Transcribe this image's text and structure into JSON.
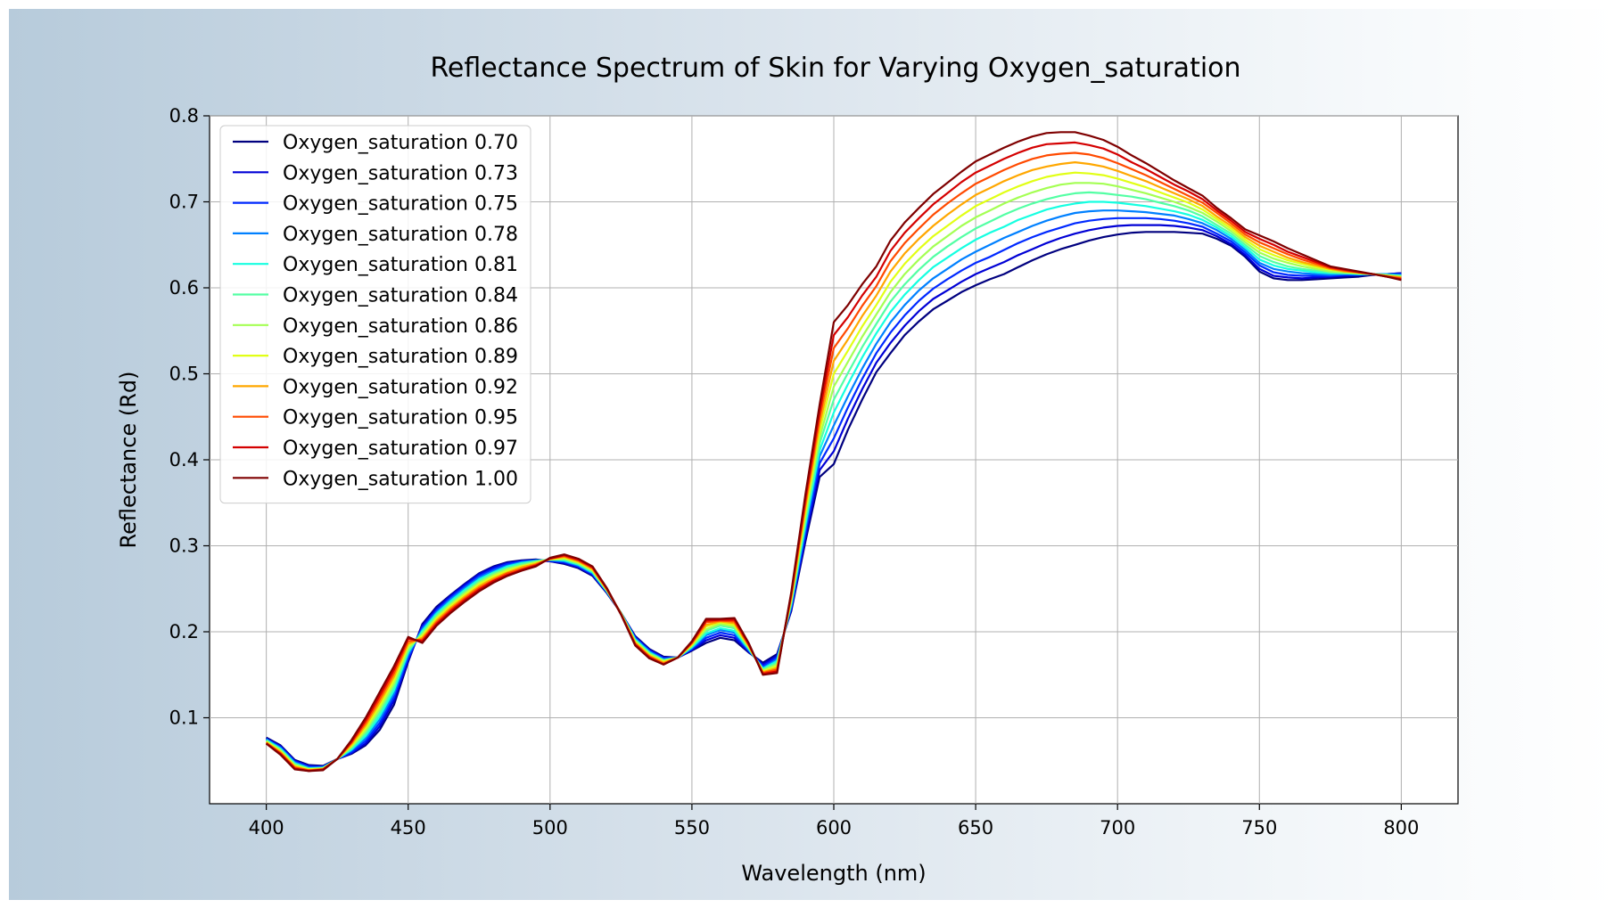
{
  "chart_data": {
    "type": "line",
    "title": "Reflectance Spectrum of Skin for Varying Oxygen_saturation",
    "xlabel": "Wavelength (nm)",
    "ylabel": "Reflectance (Rd)",
    "xlim": [
      380,
      820
    ],
    "ylim": [
      0,
      0.8
    ],
    "xticks": [
      "400",
      "450",
      "500",
      "550",
      "600",
      "650",
      "700",
      "750",
      "800"
    ],
    "yticks": [
      "0.1",
      "0.2",
      "0.3",
      "0.4",
      "0.5",
      "0.6",
      "0.7",
      "0.8"
    ],
    "grid": true,
    "legend_position": "top-left",
    "x": [
      400,
      405,
      410,
      415,
      420,
      425,
      430,
      435,
      440,
      445,
      450,
      455,
      460,
      465,
      470,
      475,
      480,
      485,
      490,
      495,
      500,
      505,
      510,
      515,
      520,
      525,
      530,
      535,
      540,
      545,
      550,
      555,
      560,
      565,
      570,
      575,
      580,
      585,
      590,
      595,
      600,
      605,
      610,
      615,
      620,
      625,
      630,
      635,
      640,
      645,
      650,
      655,
      660,
      665,
      670,
      675,
      680,
      685,
      690,
      695,
      700,
      705,
      710,
      715,
      720,
      725,
      730,
      735,
      740,
      745,
      750,
      755,
      760,
      765,
      770,
      775,
      780,
      785,
      790,
      795,
      800
    ],
    "series": [
      {
        "name": "Oxygen_saturation 0.70",
        "color": "#00007f",
        "values": [
          0.077,
          0.068,
          0.051,
          0.045,
          0.044,
          0.052,
          0.058,
          0.068,
          0.086,
          0.115,
          0.165,
          0.209,
          0.229,
          0.243,
          0.256,
          0.268,
          0.276,
          0.281,
          0.283,
          0.284,
          0.282,
          0.279,
          0.274,
          0.265,
          0.245,
          0.222,
          0.195,
          0.18,
          0.171,
          0.17,
          0.178,
          0.187,
          0.193,
          0.19,
          0.176,
          0.164,
          0.174,
          0.224,
          0.305,
          0.38,
          0.395,
          0.435,
          0.47,
          0.502,
          0.524,
          0.545,
          0.561,
          0.575,
          0.585,
          0.595,
          0.603,
          0.61,
          0.616,
          0.624,
          0.632,
          0.639,
          0.645,
          0.65,
          0.655,
          0.659,
          0.662,
          0.664,
          0.665,
          0.665,
          0.665,
          0.664,
          0.663,
          0.657,
          0.649,
          0.636,
          0.619,
          0.611,
          0.609,
          0.609,
          0.61,
          0.611,
          0.612,
          0.613,
          0.615,
          0.616,
          0.617
        ]
      },
      {
        "name": "Oxygen_saturation 0.73",
        "color": "#0000d5",
        "values": [
          0.076,
          0.067,
          0.05,
          0.044,
          0.043,
          0.052,
          0.059,
          0.07,
          0.09,
          0.12,
          0.167,
          0.207,
          0.227,
          0.242,
          0.255,
          0.267,
          0.275,
          0.28,
          0.282,
          0.283,
          0.282,
          0.28,
          0.275,
          0.266,
          0.246,
          0.222,
          0.194,
          0.179,
          0.17,
          0.17,
          0.179,
          0.19,
          0.196,
          0.193,
          0.177,
          0.162,
          0.172,
          0.226,
          0.31,
          0.388,
          0.41,
          0.448,
          0.482,
          0.513,
          0.536,
          0.556,
          0.573,
          0.587,
          0.597,
          0.607,
          0.616,
          0.623,
          0.63,
          0.638,
          0.645,
          0.652,
          0.658,
          0.663,
          0.667,
          0.67,
          0.672,
          0.673,
          0.673,
          0.673,
          0.672,
          0.67,
          0.667,
          0.66,
          0.651,
          0.638,
          0.622,
          0.614,
          0.612,
          0.611,
          0.612,
          0.613,
          0.614,
          0.615,
          0.616,
          0.616,
          0.617
        ]
      },
      {
        "name": "Oxygen_saturation 0.75",
        "color": "#0029ff",
        "values": [
          0.075,
          0.066,
          0.049,
          0.043,
          0.043,
          0.052,
          0.06,
          0.073,
          0.094,
          0.124,
          0.17,
          0.205,
          0.225,
          0.24,
          0.253,
          0.265,
          0.273,
          0.279,
          0.282,
          0.283,
          0.283,
          0.281,
          0.276,
          0.267,
          0.246,
          0.222,
          0.193,
          0.178,
          0.169,
          0.17,
          0.18,
          0.193,
          0.199,
          0.196,
          0.178,
          0.16,
          0.17,
          0.228,
          0.315,
          0.396,
          0.425,
          0.461,
          0.494,
          0.524,
          0.548,
          0.568,
          0.585,
          0.599,
          0.61,
          0.62,
          0.629,
          0.636,
          0.644,
          0.652,
          0.659,
          0.665,
          0.67,
          0.675,
          0.678,
          0.68,
          0.681,
          0.681,
          0.681,
          0.68,
          0.678,
          0.675,
          0.671,
          0.663,
          0.654,
          0.641,
          0.626,
          0.618,
          0.615,
          0.614,
          0.614,
          0.614,
          0.615,
          0.615,
          0.616,
          0.616,
          0.616
        ]
      },
      {
        "name": "Oxygen_saturation 0.78",
        "color": "#0080ff",
        "values": [
          0.075,
          0.065,
          0.048,
          0.042,
          0.042,
          0.052,
          0.062,
          0.076,
          0.098,
          0.128,
          0.173,
          0.203,
          0.223,
          0.238,
          0.251,
          0.263,
          0.271,
          0.277,
          0.281,
          0.283,
          0.283,
          0.282,
          0.277,
          0.268,
          0.247,
          0.222,
          0.192,
          0.177,
          0.168,
          0.17,
          0.181,
          0.196,
          0.202,
          0.199,
          0.179,
          0.158,
          0.168,
          0.23,
          0.32,
          0.404,
          0.44,
          0.474,
          0.506,
          0.535,
          0.56,
          0.58,
          0.597,
          0.611,
          0.622,
          0.633,
          0.642,
          0.65,
          0.658,
          0.665,
          0.672,
          0.678,
          0.683,
          0.687,
          0.689,
          0.69,
          0.69,
          0.689,
          0.688,
          0.686,
          0.684,
          0.68,
          0.675,
          0.667,
          0.657,
          0.644,
          0.629,
          0.622,
          0.619,
          0.617,
          0.616,
          0.615,
          0.616,
          0.616,
          0.616,
          0.616,
          0.615
        ]
      },
      {
        "name": "Oxygen_saturation 0.81",
        "color": "#15ffe1",
        "values": [
          0.074,
          0.064,
          0.047,
          0.041,
          0.042,
          0.052,
          0.063,
          0.079,
          0.102,
          0.132,
          0.176,
          0.201,
          0.221,
          0.236,
          0.249,
          0.261,
          0.269,
          0.276,
          0.28,
          0.282,
          0.284,
          0.283,
          0.278,
          0.269,
          0.247,
          0.222,
          0.191,
          0.176,
          0.167,
          0.17,
          0.182,
          0.198,
          0.204,
          0.201,
          0.18,
          0.157,
          0.166,
          0.232,
          0.325,
          0.411,
          0.455,
          0.488,
          0.519,
          0.547,
          0.572,
          0.592,
          0.609,
          0.624,
          0.635,
          0.646,
          0.656,
          0.664,
          0.671,
          0.679,
          0.685,
          0.691,
          0.695,
          0.698,
          0.7,
          0.7,
          0.699,
          0.697,
          0.695,
          0.692,
          0.689,
          0.685,
          0.679,
          0.67,
          0.66,
          0.647,
          0.633,
          0.626,
          0.622,
          0.62,
          0.618,
          0.617,
          0.617,
          0.616,
          0.616,
          0.615,
          0.614
        ]
      },
      {
        "name": "Oxygen_saturation 0.84",
        "color": "#53ffa4",
        "values": [
          0.073,
          0.063,
          0.046,
          0.041,
          0.041,
          0.052,
          0.065,
          0.082,
          0.106,
          0.136,
          0.178,
          0.199,
          0.219,
          0.234,
          0.247,
          0.259,
          0.268,
          0.274,
          0.279,
          0.282,
          0.284,
          0.284,
          0.279,
          0.27,
          0.248,
          0.222,
          0.19,
          0.175,
          0.167,
          0.17,
          0.183,
          0.201,
          0.207,
          0.204,
          0.181,
          0.156,
          0.164,
          0.234,
          0.33,
          0.419,
          0.47,
          0.501,
          0.531,
          0.558,
          0.584,
          0.604,
          0.621,
          0.636,
          0.648,
          0.659,
          0.669,
          0.677,
          0.685,
          0.692,
          0.698,
          0.703,
          0.707,
          0.71,
          0.711,
          0.71,
          0.708,
          0.706,
          0.703,
          0.699,
          0.695,
          0.69,
          0.683,
          0.673,
          0.663,
          0.65,
          0.637,
          0.63,
          0.625,
          0.622,
          0.62,
          0.618,
          0.617,
          0.617,
          0.616,
          0.615,
          0.614
        ]
      },
      {
        "name": "Oxygen_saturation 0.86",
        "color": "#a4ff53",
        "values": [
          0.073,
          0.062,
          0.045,
          0.04,
          0.041,
          0.052,
          0.066,
          0.085,
          0.11,
          0.14,
          0.181,
          0.197,
          0.217,
          0.232,
          0.245,
          0.257,
          0.266,
          0.273,
          0.277,
          0.281,
          0.284,
          0.285,
          0.28,
          0.271,
          0.248,
          0.221,
          0.189,
          0.174,
          0.166,
          0.17,
          0.184,
          0.203,
          0.209,
          0.206,
          0.182,
          0.155,
          0.162,
          0.236,
          0.335,
          0.426,
          0.485,
          0.514,
          0.543,
          0.569,
          0.595,
          0.616,
          0.633,
          0.648,
          0.66,
          0.672,
          0.682,
          0.69,
          0.698,
          0.705,
          0.711,
          0.716,
          0.72,
          0.722,
          0.722,
          0.721,
          0.718,
          0.714,
          0.71,
          0.705,
          0.7,
          0.694,
          0.687,
          0.677,
          0.666,
          0.653,
          0.641,
          0.634,
          0.629,
          0.625,
          0.622,
          0.619,
          0.618,
          0.617,
          0.616,
          0.614,
          0.613
        ]
      },
      {
        "name": "Oxygen_saturation 0.89",
        "color": "#e1ff15",
        "values": [
          0.072,
          0.061,
          0.044,
          0.04,
          0.041,
          0.052,
          0.068,
          0.088,
          0.114,
          0.144,
          0.184,
          0.195,
          0.215,
          0.23,
          0.243,
          0.255,
          0.264,
          0.271,
          0.276,
          0.28,
          0.284,
          0.286,
          0.281,
          0.272,
          0.249,
          0.221,
          0.188,
          0.173,
          0.165,
          0.17,
          0.185,
          0.206,
          0.211,
          0.208,
          0.183,
          0.154,
          0.16,
          0.238,
          0.34,
          0.434,
          0.5,
          0.527,
          0.555,
          0.58,
          0.607,
          0.628,
          0.645,
          0.66,
          0.672,
          0.684,
          0.695,
          0.703,
          0.711,
          0.718,
          0.724,
          0.729,
          0.732,
          0.734,
          0.733,
          0.731,
          0.727,
          0.722,
          0.717,
          0.711,
          0.705,
          0.699,
          0.691,
          0.68,
          0.669,
          0.656,
          0.645,
          0.638,
          0.632,
          0.628,
          0.624,
          0.621,
          0.619,
          0.617,
          0.616,
          0.614,
          0.612
        ]
      },
      {
        "name": "Oxygen_saturation 0.92",
        "color": "#ffa700",
        "values": [
          0.071,
          0.06,
          0.043,
          0.039,
          0.04,
          0.052,
          0.069,
          0.091,
          0.118,
          0.148,
          0.186,
          0.193,
          0.213,
          0.228,
          0.241,
          0.253,
          0.262,
          0.269,
          0.275,
          0.279,
          0.285,
          0.287,
          0.282,
          0.273,
          0.249,
          0.221,
          0.187,
          0.172,
          0.164,
          0.17,
          0.186,
          0.208,
          0.212,
          0.21,
          0.184,
          0.153,
          0.158,
          0.24,
          0.345,
          0.441,
          0.515,
          0.54,
          0.567,
          0.591,
          0.619,
          0.64,
          0.657,
          0.672,
          0.685,
          0.697,
          0.708,
          0.716,
          0.724,
          0.731,
          0.737,
          0.741,
          0.744,
          0.746,
          0.744,
          0.741,
          0.736,
          0.73,
          0.724,
          0.717,
          0.71,
          0.703,
          0.695,
          0.683,
          0.672,
          0.659,
          0.649,
          0.642,
          0.635,
          0.63,
          0.626,
          0.622,
          0.619,
          0.618,
          0.616,
          0.614,
          0.612
        ]
      },
      {
        "name": "Oxygen_saturation 0.95",
        "color": "#ff4a00",
        "values": [
          0.071,
          0.059,
          0.042,
          0.039,
          0.04,
          0.052,
          0.071,
          0.094,
          0.122,
          0.152,
          0.189,
          0.191,
          0.211,
          0.226,
          0.239,
          0.251,
          0.26,
          0.268,
          0.273,
          0.278,
          0.285,
          0.288,
          0.283,
          0.274,
          0.25,
          0.221,
          0.186,
          0.171,
          0.163,
          0.17,
          0.187,
          0.211,
          0.213,
          0.212,
          0.185,
          0.152,
          0.156,
          0.242,
          0.35,
          0.449,
          0.53,
          0.553,
          0.579,
          0.602,
          0.631,
          0.652,
          0.669,
          0.685,
          0.698,
          0.71,
          0.721,
          0.729,
          0.737,
          0.744,
          0.75,
          0.754,
          0.756,
          0.757,
          0.755,
          0.751,
          0.745,
          0.738,
          0.731,
          0.723,
          0.715,
          0.707,
          0.699,
          0.687,
          0.675,
          0.662,
          0.653,
          0.646,
          0.639,
          0.633,
          0.628,
          0.623,
          0.62,
          0.618,
          0.616,
          0.613,
          0.611
        ]
      },
      {
        "name": "Oxygen_saturation 0.97",
        "color": "#d40000",
        "values": [
          0.07,
          0.058,
          0.041,
          0.038,
          0.04,
          0.052,
          0.072,
          0.097,
          0.126,
          0.156,
          0.192,
          0.189,
          0.209,
          0.224,
          0.237,
          0.249,
          0.259,
          0.266,
          0.272,
          0.277,
          0.285,
          0.289,
          0.284,
          0.275,
          0.25,
          0.22,
          0.185,
          0.17,
          0.162,
          0.17,
          0.188,
          0.213,
          0.214,
          0.214,
          0.186,
          0.151,
          0.154,
          0.244,
          0.355,
          0.456,
          0.545,
          0.566,
          0.591,
          0.613,
          0.643,
          0.664,
          0.681,
          0.697,
          0.71,
          0.723,
          0.734,
          0.742,
          0.75,
          0.757,
          0.763,
          0.767,
          0.768,
          0.769,
          0.766,
          0.762,
          0.755,
          0.746,
          0.738,
          0.729,
          0.72,
          0.712,
          0.703,
          0.69,
          0.678,
          0.665,
          0.657,
          0.65,
          0.642,
          0.636,
          0.63,
          0.624,
          0.621,
          0.618,
          0.616,
          0.613,
          0.61
        ]
      },
      {
        "name": "Oxygen_saturation 1.00",
        "color": "#7f0000",
        "values": [
          0.07,
          0.057,
          0.04,
          0.038,
          0.039,
          0.052,
          0.074,
          0.1,
          0.13,
          0.16,
          0.194,
          0.187,
          0.207,
          0.222,
          0.235,
          0.247,
          0.257,
          0.265,
          0.271,
          0.276,
          0.286,
          0.29,
          0.285,
          0.276,
          0.251,
          0.22,
          0.184,
          0.169,
          0.162,
          0.17,
          0.189,
          0.215,
          0.215,
          0.216,
          0.187,
          0.15,
          0.152,
          0.246,
          0.36,
          0.464,
          0.56,
          0.58,
          0.604,
          0.625,
          0.655,
          0.676,
          0.693,
          0.709,
          0.722,
          0.735,
          0.747,
          0.755,
          0.763,
          0.77,
          0.776,
          0.78,
          0.781,
          0.781,
          0.777,
          0.772,
          0.764,
          0.754,
          0.745,
          0.735,
          0.725,
          0.716,
          0.707,
          0.693,
          0.681,
          0.668,
          0.661,
          0.654,
          0.646,
          0.639,
          0.632,
          0.625,
          0.622,
          0.619,
          0.616,
          0.613,
          0.609
        ]
      }
    ]
  }
}
